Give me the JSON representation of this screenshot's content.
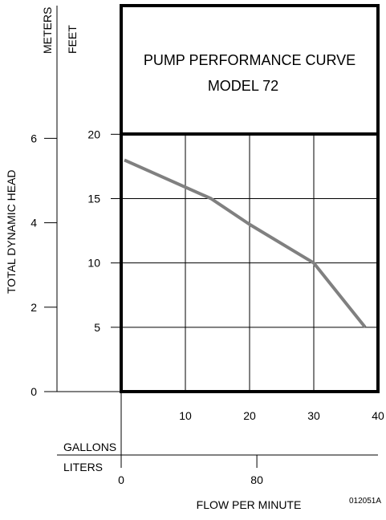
{
  "chart_data": {
    "type": "line",
    "title": "PUMP PERFORMANCE CURVE",
    "subtitle": "MODEL 72",
    "xlabel": "FLOW PER MINUTE",
    "ylabel": "TOTAL DYNAMIC HEAD",
    "x_primary": {
      "unit": "GALLONS",
      "range": [
        0,
        40
      ],
      "ticks": [
        10,
        20,
        30,
        40
      ]
    },
    "x_secondary": {
      "unit": "LITERS",
      "range": [
        0,
        151.4
      ],
      "ticks": [
        0,
        80
      ]
    },
    "y_primary": {
      "unit": "FEET",
      "range": [
        0,
        30
      ],
      "ticks": [
        5,
        10,
        15,
        20
      ]
    },
    "y_secondary": {
      "unit": "METERS",
      "range": [
        0,
        9.144
      ],
      "ticks": [
        0,
        2,
        4,
        6
      ]
    },
    "grid": true,
    "series": [
      {
        "x": [
          0.5,
          14,
          20,
          30,
          38
        ],
        "y": [
          18,
          15,
          13,
          10,
          5
        ],
        "color": "#808080"
      }
    ],
    "figure_code": "012051A"
  }
}
